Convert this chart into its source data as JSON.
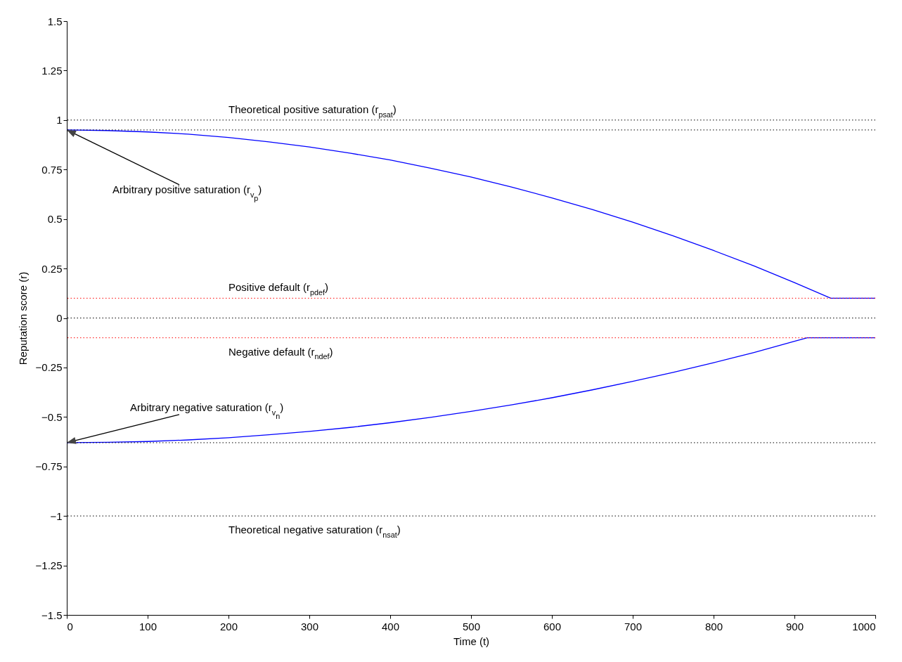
{
  "chart_data": {
    "type": "line",
    "xlabel": "Time (t)",
    "ylabel": "Reputation score (r)",
    "xlim": [
      0,
      1000
    ],
    "xticks": [
      0,
      100,
      200,
      300,
      400,
      500,
      600,
      700,
      800,
      900,
      1000
    ],
    "ylim": [
      -1.5,
      1.5
    ],
    "yticks": [
      {
        "value": -1.5,
        "label": "−1.5"
      },
      {
        "value": -1.25,
        "label": "−1.25"
      },
      {
        "value": -1,
        "label": "−1"
      },
      {
        "value": -0.75,
        "label": "−0.75"
      },
      {
        "value": -0.5,
        "label": "−0.5"
      },
      {
        "value": -0.25,
        "label": "−0.25"
      },
      0,
      0.25,
      0.5,
      0.75,
      1,
      1.25,
      1.5
    ],
    "grid": false,
    "line_style": "solid",
    "series": [
      {
        "color": "#0000ff",
        "x": [
          0,
          50,
          100,
          150,
          200,
          250,
          300,
          350,
          400,
          450,
          500,
          550,
          600,
          650,
          700,
          750,
          800,
          850,
          900,
          945,
          1000
        ],
        "values": [
          0.95,
          0.947,
          0.94,
          0.929,
          0.912,
          0.89,
          0.864,
          0.833,
          0.798,
          0.757,
          0.712,
          0.662,
          0.607,
          0.548,
          0.484,
          0.415,
          0.341,
          0.263,
          0.179,
          0.1,
          0.1
        ]
      },
      {
        "color": "#0000ff",
        "x": [
          0,
          50,
          100,
          150,
          200,
          250,
          300,
          350,
          400,
          450,
          500,
          550,
          600,
          650,
          700,
          750,
          800,
          850,
          900,
          916,
          1000
        ],
        "values": [
          -0.63,
          -0.628,
          -0.624,
          -0.616,
          -0.605,
          -0.59,
          -0.573,
          -0.553,
          -0.529,
          -0.502,
          -0.472,
          -0.439,
          -0.403,
          -0.363,
          -0.32,
          -0.275,
          -0.226,
          -0.174,
          -0.118,
          -0.1,
          -0.1
        ]
      }
    ],
    "ref_lines": [
      {
        "axis": "y",
        "value": 1,
        "label": "Theoretical positive saturation (r$_{psat}$)",
        "color": "#000000",
        "line_style": "dotted"
      },
      {
        "axis": "y",
        "value": 0.95,
        "color": "#000000",
        "line_style": "dotted"
      },
      {
        "axis": "y",
        "value": 0.1,
        "label": "Positive default (r$_{pdef}$)",
        "color": "#ff0000",
        "line_style": "dotted"
      },
      {
        "axis": "y",
        "value": 0,
        "color": "#000000",
        "line_style": "dotted"
      },
      {
        "axis": "y",
        "value": -0.1,
        "label": "Negative default (r$_{ndef}$)",
        "color": "#ff0000",
        "line_style": "dotted"
      },
      {
        "axis": "y",
        "value": -0.63,
        "color": "#000000",
        "line_style": "dotted"
      },
      {
        "axis": "y",
        "value": -1,
        "label": "Theoretical negative saturation (r$_{nsat}$)",
        "color": "#000000",
        "line_style": "dotted"
      }
    ],
    "annotations": [
      {
        "text": "Arbitrary positive saturation (r$_{v}$$_{p}$)",
        "x": 0,
        "y": 0.95
      },
      {
        "text": "Arbitrary negative saturation (r$_{v}$$_{n}$)",
        "x": 0,
        "y": -0.63
      }
    ]
  }
}
